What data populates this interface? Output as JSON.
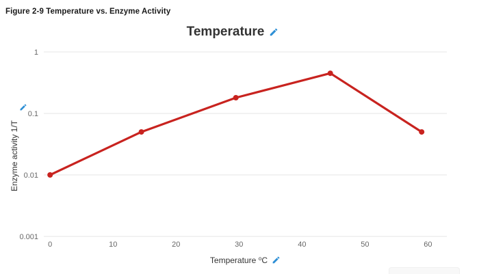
{
  "figure_heading": "Figure 2-9 Temperature vs. Enzyme Activity",
  "chart_data": {
    "type": "line",
    "title": "Temperature",
    "xlabel": "Temperature ⁰C",
    "ylabel": "Enzyme activity 1/T",
    "x": [
      0,
      14.5,
      29.5,
      44.5,
      59
    ],
    "y": [
      0.01,
      0.05,
      0.18,
      0.45,
      0.05
    ],
    "x_ticks": [
      0,
      10,
      20,
      30,
      40,
      50,
      60
    ],
    "y_ticks": [
      1,
      0.1,
      0.01,
      0.001
    ],
    "xlim": [
      -1,
      63
    ],
    "ylim": [
      0.001,
      1
    ],
    "y_scale": "log",
    "grid": true,
    "legend": "none",
    "marker": "circle"
  },
  "icons": {
    "edit": "pencil"
  },
  "colors": {
    "line": "#c8231f",
    "edit_icon": "#2d8fd5",
    "grid": "#e6e6e6",
    "tick_text": "#666666",
    "label_text": "#333333",
    "heading_text": "#1a1a1a",
    "partial_box": "#f8f8f8"
  }
}
